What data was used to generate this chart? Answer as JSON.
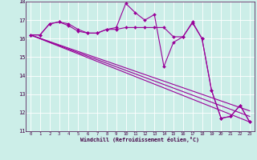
{
  "xlabel": "Windchill (Refroidissement éolien,°C)",
  "bg_color": "#cceee8",
  "line_color": "#990099",
  "grid_color": "#ffffff",
  "series1_y": [
    16.2,
    16.2,
    16.8,
    16.9,
    16.8,
    16.5,
    16.3,
    16.3,
    16.5,
    16.6,
    17.9,
    17.4,
    17.0,
    17.3,
    14.5,
    15.8,
    16.1,
    16.85,
    16.0,
    13.2,
    11.7,
    11.8,
    12.4,
    11.5
  ],
  "series2_y": [
    16.2,
    16.2,
    16.8,
    16.9,
    16.7,
    16.4,
    16.3,
    16.3,
    16.5,
    16.5,
    16.6,
    16.6,
    16.6,
    16.6,
    16.6,
    16.1,
    16.1,
    16.9,
    16.0,
    13.2,
    11.7,
    11.8,
    12.4,
    11.5
  ],
  "trend1_y_start": 16.2,
  "trend1_y_end": 11.5,
  "trend2_y_start": 16.2,
  "trend2_y_end": 11.8,
  "trend3_y_start": 16.2,
  "trend3_y_end": 12.1,
  "ylim": [
    11,
    18
  ],
  "xlim_min": -0.5,
  "xlim_max": 23.5,
  "yticks": [
    11,
    12,
    13,
    14,
    15,
    16,
    17,
    18
  ],
  "xticks": [
    0,
    1,
    2,
    3,
    4,
    5,
    6,
    7,
    8,
    9,
    10,
    11,
    12,
    13,
    14,
    15,
    16,
    17,
    18,
    19,
    20,
    21,
    22,
    23
  ],
  "marker": "D",
  "markersize": 2.0,
  "linewidth": 0.8
}
